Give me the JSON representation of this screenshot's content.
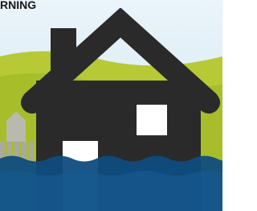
{
  "header": {
    "title": "RNING"
  }
}
